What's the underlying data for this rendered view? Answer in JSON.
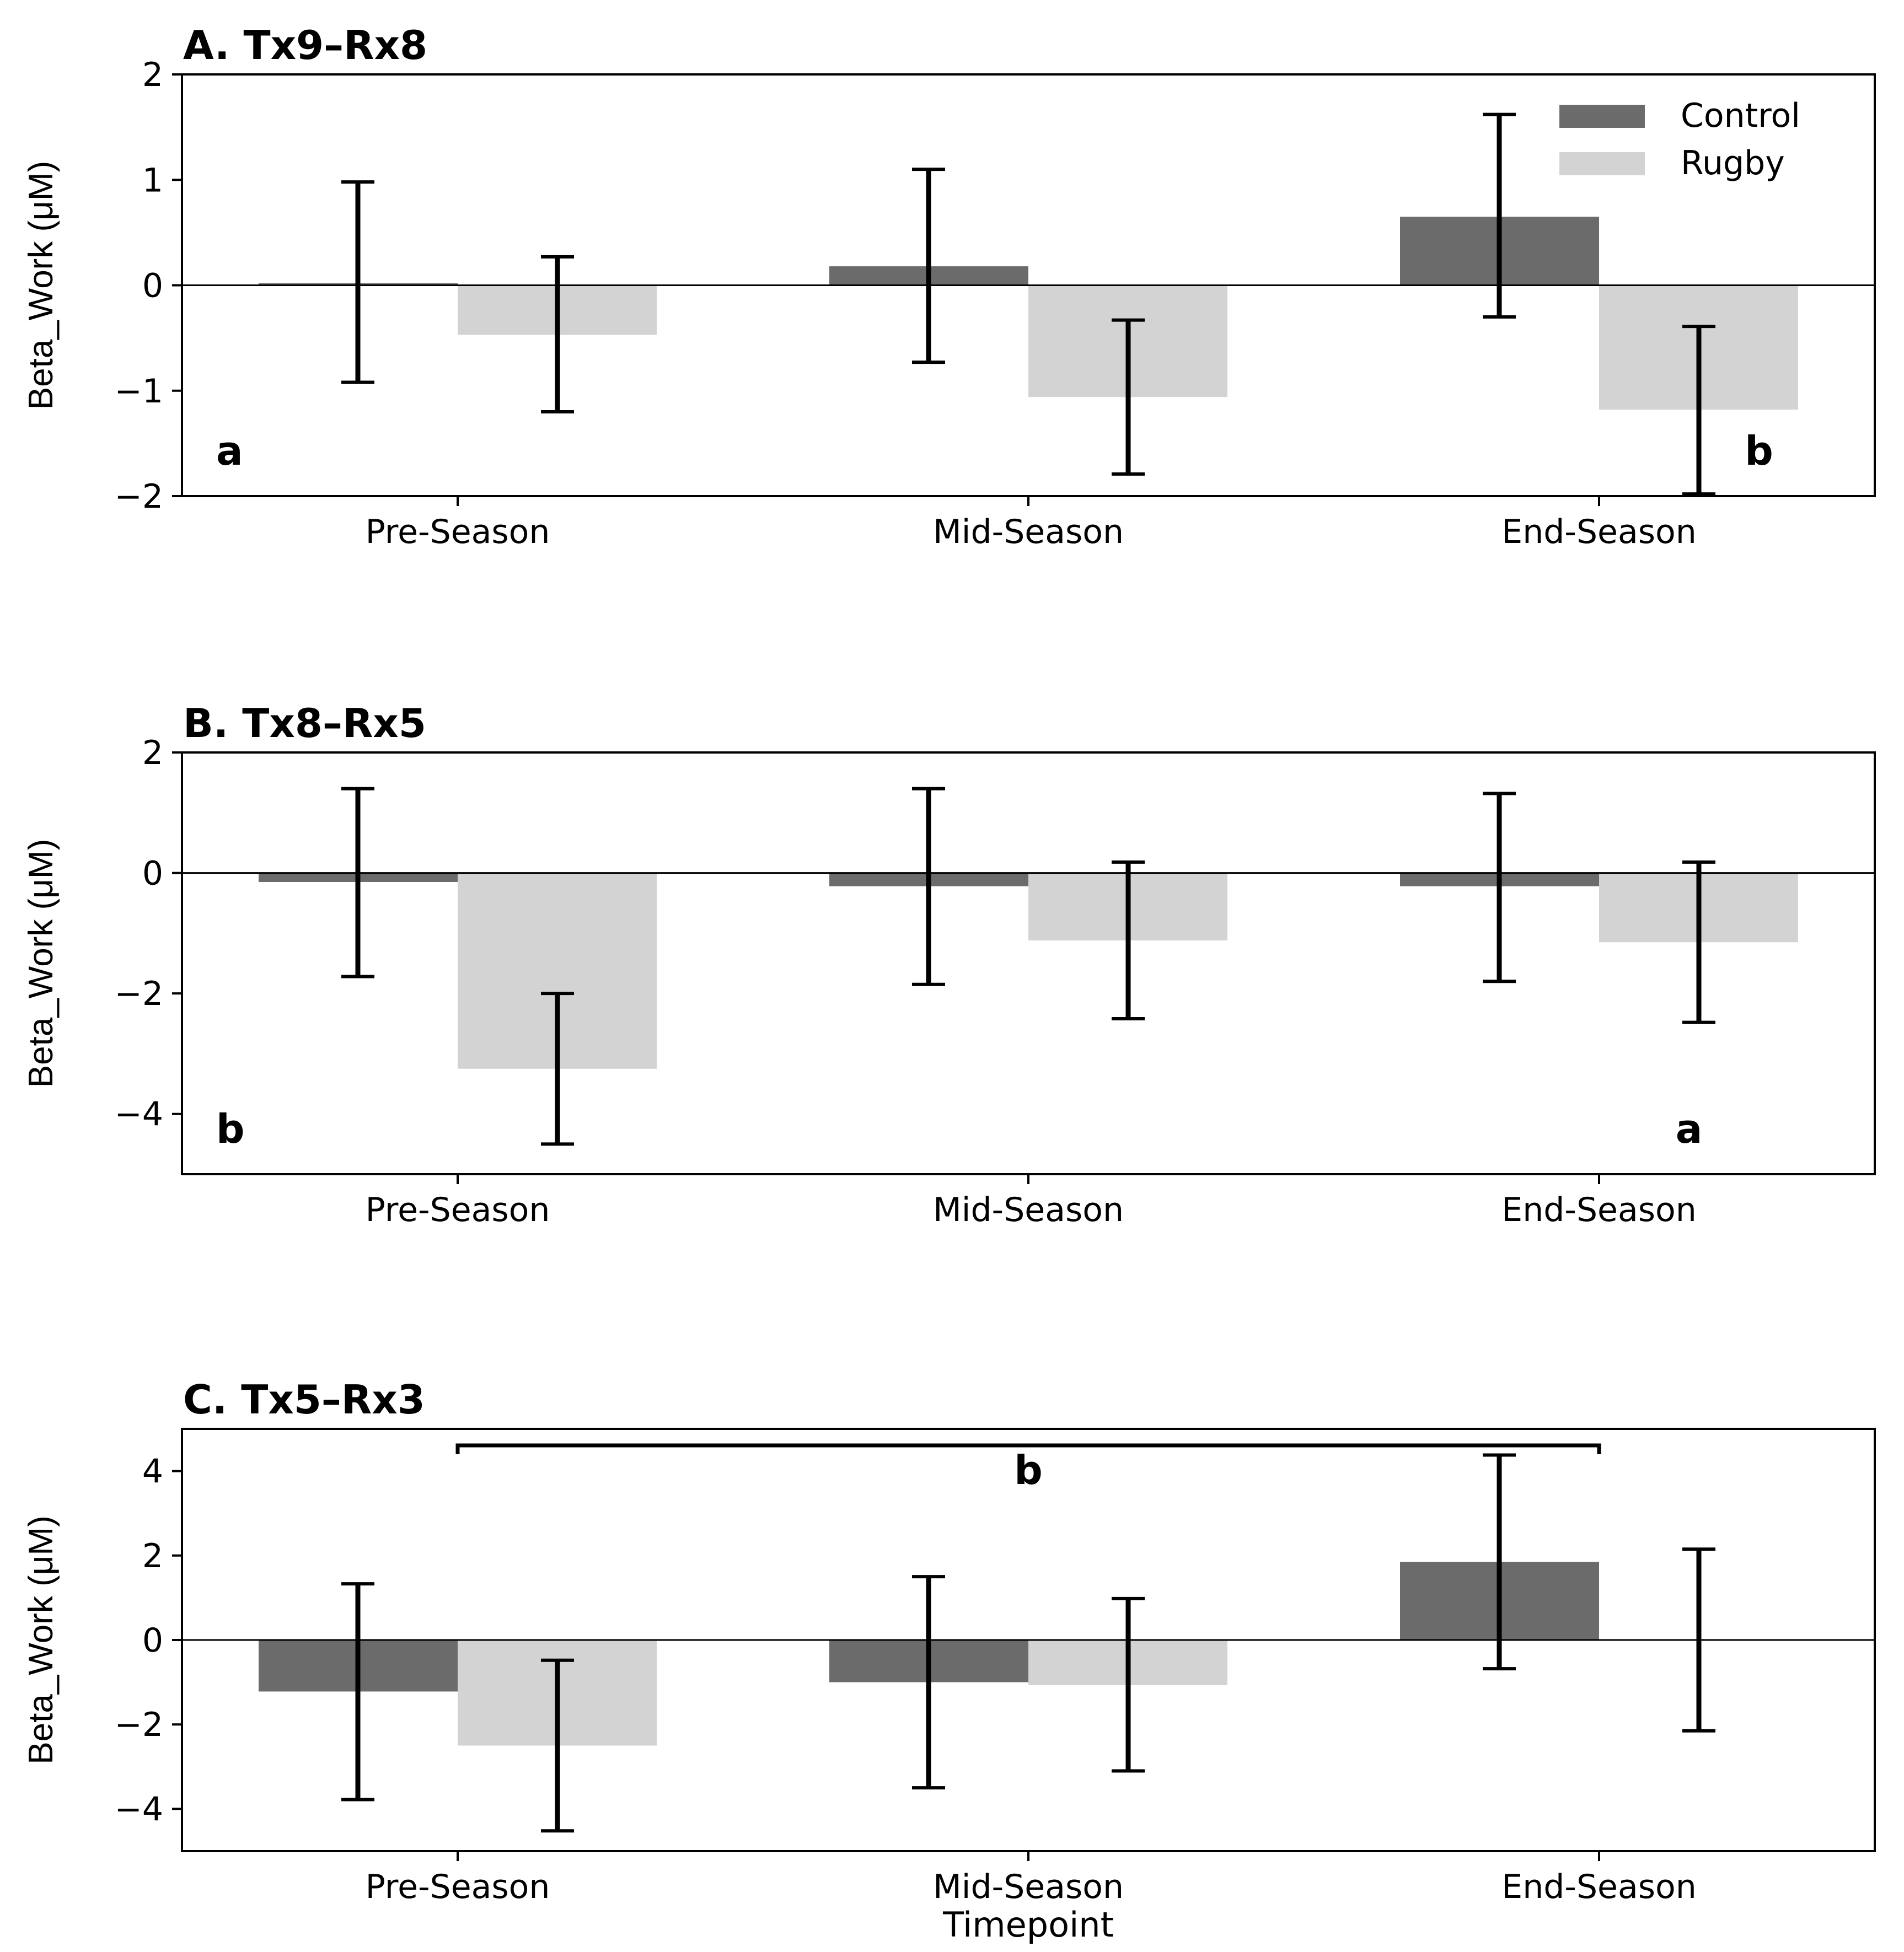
{
  "chart_data": [
    {
      "type": "bar",
      "title": "A. Tx9–Rx8",
      "xlabel": "",
      "ylabel": "Beta_Work (μM)",
      "ylim": [
        -2,
        2
      ],
      "yticks": [
        2,
        1,
        0,
        -1,
        -2
      ],
      "ytick_labels": [
        "2",
        "1",
        "0",
        "−1",
        "−2"
      ],
      "categories": [
        "Pre-Season",
        "Mid-Season",
        "End-Season"
      ],
      "series": [
        {
          "name": "Control",
          "values": [
            0.02,
            0.18,
            0.65
          ],
          "err_low": [
            -0.92,
            -0.73,
            -0.3
          ],
          "err_high": [
            0.98,
            1.1,
            1.62
          ]
        },
        {
          "name": "Rugby",
          "values": [
            -0.47,
            -1.06,
            -1.18
          ],
          "err_low": [
            -1.2,
            -1.79,
            -1.98
          ],
          "err_high": [
            0.27,
            -0.33,
            -0.39
          ]
        }
      ],
      "legend": {
        "position": "top-right",
        "entries": [
          "Control",
          "Rugby"
        ]
      },
      "annotations": [
        {
          "text": "a",
          "position": "bottom-left"
        },
        {
          "text": "b",
          "position": "bottom-right"
        }
      ]
    },
    {
      "type": "bar",
      "title": "B. Tx8–Rx5",
      "xlabel": "",
      "ylabel": "Beta_Work (μM)",
      "ylim": [
        -5,
        2
      ],
      "yticks": [
        2,
        0,
        -2,
        -4
      ],
      "ytick_labels": [
        "2",
        "0",
        "−2",
        "−4"
      ],
      "categories": [
        "Pre-Season",
        "Mid-Season",
        "End-Season"
      ],
      "series": [
        {
          "name": "Control",
          "values": [
            -0.15,
            -0.22,
            -0.22
          ],
          "err_low": [
            -1.72,
            -1.85,
            -1.8
          ],
          "err_high": [
            1.4,
            1.4,
            1.32
          ]
        },
        {
          "name": "Rugby",
          "values": [
            -3.25,
            -1.12,
            -1.15
          ],
          "err_low": [
            -4.5,
            -2.42,
            -2.48
          ],
          "err_high": [
            -2.0,
            0.18,
            0.18
          ]
        }
      ],
      "annotations": [
        {
          "text": "b",
          "position": "bottom-left"
        },
        {
          "text": "a",
          "position": "bottom-right"
        }
      ]
    },
    {
      "type": "bar",
      "title": "C. Tx5–Rx3",
      "xlabel": "Timepoint",
      "ylabel": "Beta_Work (μM)",
      "ylim": [
        -5,
        5
      ],
      "yticks": [
        4,
        2,
        0,
        -2,
        -4
      ],
      "ytick_labels": [
        "4",
        "2",
        "0",
        "−2",
        "−4"
      ],
      "categories": [
        "Pre-Season",
        "Mid-Season",
        "End-Season"
      ],
      "series": [
        {
          "name": "Control",
          "values": [
            -1.22,
            -1.0,
            1.85
          ],
          "err_low": [
            -3.78,
            -3.5,
            -0.68
          ],
          "err_high": [
            1.33,
            1.5,
            4.38
          ]
        },
        {
          "name": "Rugby",
          "values": [
            -2.5,
            -1.07,
            0.0
          ],
          "err_low": [
            -4.52,
            -3.1,
            -2.15
          ],
          "err_high": [
            -0.48,
            0.98,
            2.15
          ]
        }
      ],
      "annotations": [
        {
          "text": "b",
          "position": "bracket Pre-Season to End-Season"
        }
      ]
    }
  ],
  "colors": {
    "control": "#6b6b6b",
    "rugby": "#d3d3d3",
    "axis": "#000000",
    "error": "#000000"
  }
}
